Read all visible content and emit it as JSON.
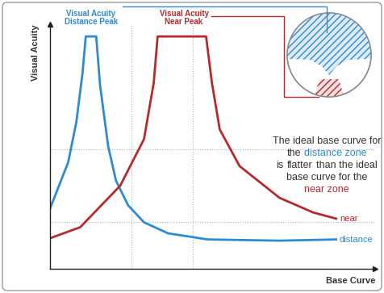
{
  "chart_data": {
    "type": "line",
    "xlabel": "Base Curve",
    "ylabel": "Visual Acuity",
    "xlim": [
      0,
      10
    ],
    "ylim": [
      0,
      10
    ],
    "xticks": [
      2.5,
      4.4
    ],
    "yticks": [
      1.9,
      4.9
    ],
    "grid": true,
    "tick_labels": false,
    "series": [
      {
        "name": "distance",
        "color": "#2e8bd0",
        "x": [
          0,
          0.56,
          0.81,
          1.0,
          1.1,
          1.42,
          1.54,
          1.79,
          2.03,
          2.4,
          2.89,
          3.63,
          4.85,
          7.06,
          8.8
        ],
        "values": [
          2.46,
          4.36,
          6.0,
          8.0,
          9.5,
          9.5,
          7.5,
          5.0,
          3.6,
          2.6,
          1.9,
          1.45,
          1.2,
          1.15,
          1.2
        ]
      },
      {
        "name": "near",
        "color": "#b52a2e",
        "x": [
          0,
          0.93,
          2.16,
          2.89,
          3.19,
          3.31,
          4.8,
          4.98,
          5.22,
          5.83,
          7.06,
          8.1,
          8.8
        ],
        "values": [
          1.25,
          1.7,
          3.4,
          5.3,
          7.6,
          9.5,
          9.5,
          7.6,
          5.7,
          4.2,
          2.9,
          2.3,
          2.05
        ]
      }
    ],
    "annotations": [
      {
        "text": "Visual Acuity\nDistance Peak",
        "color": "#2e8bd0"
      },
      {
        "text": "Visual Acuity\nNear Peak",
        "color": "#b52a2e"
      },
      {
        "lines": [
          [
            {
              "text": "The ideal base curve for"
            }
          ],
          [
            {
              "text": "the"
            },
            {
              "text": "distance zone",
              "color": "#2e8bd0"
            }
          ],
          [
            {
              "text": "is"
            },
            {
              "text": "flatter"
            },
            {
              "text": "than the ideal"
            }
          ],
          [
            {
              "text": "base curve for the"
            }
          ],
          [
            {
              "text": "near zone",
              "color": "#b52a2e"
            }
          ]
        ]
      }
    ]
  }
}
